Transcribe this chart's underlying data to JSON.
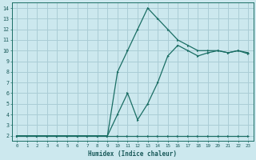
{
  "xlabel": "Humidex (Indice chaleur)",
  "bg_color": "#cce8ee",
  "grid_color": "#aacdd6",
  "line_color": "#1a6e64",
  "xlim_min": -0.5,
  "xlim_max": 23.5,
  "ylim_min": 1.5,
  "ylim_max": 14.5,
  "xticks": [
    0,
    1,
    2,
    3,
    4,
    5,
    6,
    7,
    8,
    9,
    10,
    11,
    12,
    13,
    14,
    15,
    16,
    17,
    18,
    19,
    20,
    21,
    22,
    23
  ],
  "yticks": [
    2,
    3,
    4,
    5,
    6,
    7,
    8,
    9,
    10,
    11,
    12,
    13,
    14
  ],
  "line1_x": [
    0,
    1,
    2,
    3,
    4,
    5,
    6,
    7,
    8,
    9,
    10,
    11,
    12,
    13,
    14,
    15,
    16,
    17,
    18,
    19,
    20,
    21,
    22,
    23
  ],
  "line1_y": [
    2,
    2,
    2,
    2,
    2,
    2,
    2,
    2,
    2,
    2,
    2,
    2,
    2,
    2,
    2,
    2,
    2,
    2,
    2,
    2,
    2,
    2,
    2,
    2
  ],
  "line2_x": [
    0,
    2,
    3,
    4,
    5,
    6,
    7,
    8,
    9,
    10,
    11,
    12,
    13,
    14,
    15,
    16,
    17,
    18,
    19,
    20,
    21,
    22,
    23
  ],
  "line2_y": [
    2,
    2,
    2,
    2,
    2,
    2,
    2,
    2,
    2,
    8,
    10,
    12,
    14,
    13,
    12,
    11,
    10.5,
    10,
    10,
    10,
    9.8,
    10,
    9.8
  ],
  "line3_x": [
    0,
    2,
    3,
    4,
    5,
    6,
    7,
    8,
    9,
    10,
    11,
    12,
    13,
    14,
    15,
    16,
    17,
    18,
    19,
    20,
    21,
    22,
    23
  ],
  "line3_y": [
    2,
    2,
    2,
    2,
    2,
    2,
    2,
    2,
    2,
    4,
    6,
    3.5,
    5,
    7,
    9.5,
    10.5,
    10,
    9.5,
    9.8,
    10,
    9.8,
    10,
    9.7
  ]
}
